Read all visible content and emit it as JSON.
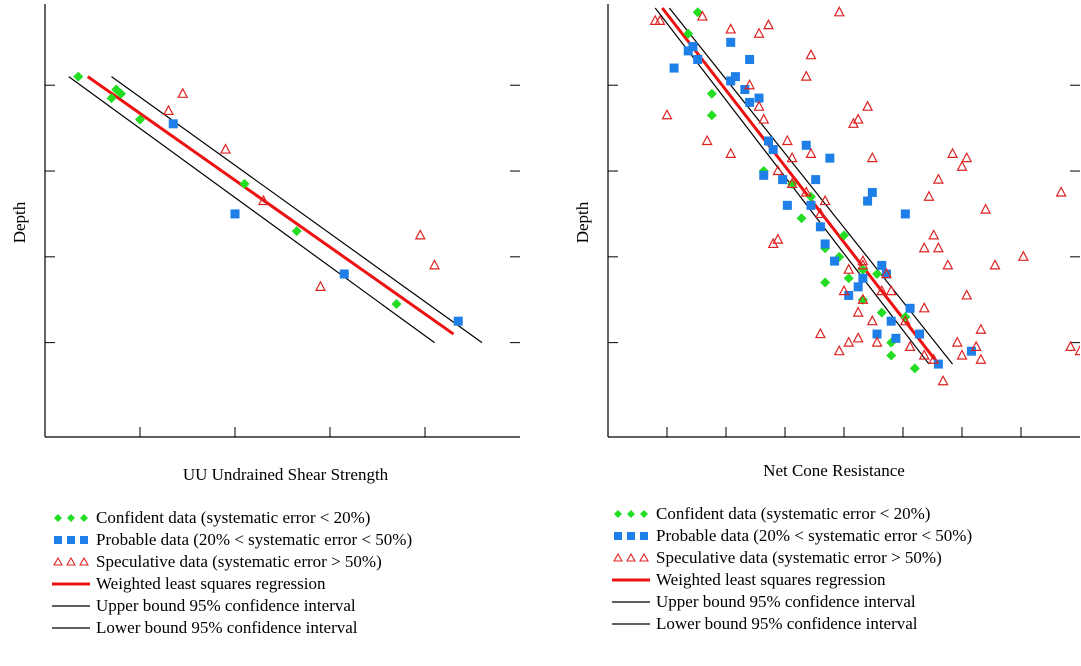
{
  "chart_data": [
    {
      "type": "scatter",
      "xlabel": "UU Undrained Shear Strength",
      "ylabel": "Depth",
      "xlim": [
        0,
        10
      ],
      "ylim": [
        0,
        10
      ],
      "y_inverted": true,
      "x_ticks": [
        2,
        4,
        6,
        8
      ],
      "y_ticks": [
        2,
        4,
        6,
        8
      ],
      "series": [
        {
          "name": "Confident data (systematic error < 20%)",
          "marker": "diamond",
          "color": "#22dd22",
          "points": [
            [
              0.7,
              1.6
            ],
            [
              1.4,
              2.1
            ],
            [
              1.5,
              1.9
            ],
            [
              1.6,
              2.0
            ],
            [
              2.0,
              2.6
            ],
            [
              4.2,
              4.1
            ],
            [
              5.3,
              5.2
            ],
            [
              7.4,
              6.9
            ]
          ]
        },
        {
          "name": "Probable data (20% < systematic error < 50%)",
          "marker": "square",
          "color": "#1e7fe8",
          "points": [
            [
              2.7,
              2.7
            ],
            [
              4.0,
              4.8
            ],
            [
              6.3,
              6.2
            ],
            [
              8.7,
              7.3
            ]
          ]
        },
        {
          "name": "Speculative data (systematic error > 50%)",
          "marker": "triangle-open",
          "color": "#dd2222",
          "points": [
            [
              2.6,
              2.4
            ],
            [
              2.9,
              2.0
            ],
            [
              3.8,
              3.3
            ],
            [
              4.6,
              4.5
            ],
            [
              5.8,
              6.5
            ],
            [
              7.9,
              5.3
            ],
            [
              8.2,
              6.0
            ],
            [
              10.2,
              7.6
            ]
          ]
        },
        {
          "name": "Weighted least squares regression",
          "line": true,
          "color": "#ee1111",
          "points": [
            [
              0.9,
              1.6
            ],
            [
              8.6,
              7.6
            ]
          ]
        },
        {
          "name": "Upper bound 95% confidence interval",
          "line": true,
          "color": "#000000",
          "points": [
            [
              1.4,
              1.6
            ],
            [
              9.2,
              7.8
            ]
          ]
        },
        {
          "name": "Lower bound 95% confidence interval",
          "line": true,
          "color": "#000000",
          "points": [
            [
              0.5,
              1.6
            ],
            [
              8.2,
              7.8
            ]
          ]
        }
      ]
    },
    {
      "type": "scatter",
      "xlabel": "Net Cone Resistance",
      "ylabel": "Depth",
      "xlim": [
        0,
        10
      ],
      "ylim": [
        0,
        10
      ],
      "y_inverted": true,
      "x_ticks": [
        1.25,
        2.5,
        3.75,
        5.0,
        6.25,
        7.5,
        8.75
      ],
      "y_ticks": [
        2,
        4,
        6,
        8
      ],
      "series": [
        {
          "name": "Confident data (systematic error < 20%)",
          "marker": "diamond",
          "color": "#22dd22",
          "points": [
            [
              1.9,
              0.1
            ],
            [
              1.7,
              0.6
            ],
            [
              2.2,
              2.0
            ],
            [
              2.2,
              2.5
            ],
            [
              3.3,
              3.8
            ],
            [
              4.3,
              4.4
            ],
            [
              4.1,
              4.9
            ],
            [
              4.6,
              5.6
            ],
            [
              5.0,
              5.3
            ],
            [
              4.9,
              5.8
            ],
            [
              4.6,
              6.4
            ],
            [
              5.1,
              6.3
            ],
            [
              5.4,
              6.1
            ],
            [
              5.7,
              6.2
            ],
            [
              4.5,
              5.1
            ],
            [
              3.9,
              4.1
            ],
            [
              5.4,
              6.8
            ],
            [
              5.8,
              7.1
            ],
            [
              6.3,
              7.2
            ],
            [
              6.0,
              7.8
            ],
            [
              6.0,
              8.1
            ],
            [
              6.5,
              8.4
            ]
          ]
        },
        {
          "name": "Probable data (20% < systematic error < 50%)",
          "marker": "square",
          "color": "#1e7fe8",
          "points": [
            [
              1.4,
              1.4
            ],
            [
              1.8,
              0.9
            ],
            [
              1.9,
              1.2
            ],
            [
              1.7,
              1.0
            ],
            [
              2.6,
              0.8
            ],
            [
              2.6,
              1.7
            ],
            [
              2.7,
              1.6
            ],
            [
              3.0,
              1.2
            ],
            [
              2.9,
              1.9
            ],
            [
              3.0,
              2.2
            ],
            [
              3.2,
              2.1
            ],
            [
              3.4,
              3.1
            ],
            [
              3.5,
              3.3
            ],
            [
              3.3,
              3.9
            ],
            [
              3.7,
              4.0
            ],
            [
              3.8,
              4.6
            ],
            [
              4.2,
              3.2
            ],
            [
              4.4,
              4.0
            ],
            [
              4.3,
              4.6
            ],
            [
              4.5,
              5.1
            ],
            [
              4.6,
              5.5
            ],
            [
              4.7,
              3.5
            ],
            [
              4.8,
              5.9
            ],
            [
              5.1,
              6.7
            ],
            [
              5.3,
              6.5
            ],
            [
              5.4,
              6.3
            ],
            [
              5.5,
              4.5
            ],
            [
              5.6,
              4.3
            ],
            [
              5.8,
              6.0
            ],
            [
              5.9,
              6.2
            ],
            [
              5.7,
              7.6
            ],
            [
              6.0,
              7.3
            ],
            [
              6.1,
              7.7
            ],
            [
              6.3,
              4.8
            ],
            [
              6.4,
              7.0
            ],
            [
              6.6,
              7.6
            ],
            [
              7.0,
              8.3
            ],
            [
              7.7,
              8.0
            ]
          ]
        },
        {
          "name": "Speculative data (systematic error > 50%)",
          "marker": "triangle-open",
          "color": "#dd2222",
          "points": [
            [
              1.1,
              0.3
            ],
            [
              1.25,
              2.5
            ],
            [
              2.1,
              3.1
            ],
            [
              2.6,
              3.4
            ],
            [
              2.6,
              0.5
            ],
            [
              3.0,
              1.8
            ],
            [
              3.4,
              0.4
            ],
            [
              3.2,
              2.3
            ],
            [
              3.3,
              2.6
            ],
            [
              3.6,
              3.8
            ],
            [
              3.5,
              5.5
            ],
            [
              3.6,
              5.4
            ],
            [
              3.8,
              3.1
            ],
            [
              3.9,
              3.5
            ],
            [
              3.9,
              4.1
            ],
            [
              4.2,
              4.3
            ],
            [
              4.3,
              1.1
            ],
            [
              4.2,
              1.6
            ],
            [
              4.3,
              3.4
            ],
            [
              4.5,
              4.8
            ],
            [
              4.6,
              4.5
            ],
            [
              4.5,
              7.6
            ],
            [
              4.9,
              8.0
            ],
            [
              5.1,
              6.1
            ],
            [
              5.3,
              7.7
            ],
            [
              5.4,
              6.8
            ],
            [
              5.5,
              2.3
            ],
            [
              5.6,
              3.5
            ],
            [
              5.2,
              2.7
            ],
            [
              5.3,
              2.6
            ],
            [
              5.4,
              5.9
            ],
            [
              5.6,
              7.3
            ],
            [
              5.7,
              7.8
            ],
            [
              5.8,
              6.6
            ],
            [
              5.9,
              6.2
            ],
            [
              6.0,
              6.6
            ],
            [
              6.3,
              7.3
            ],
            [
              6.4,
              7.9
            ],
            [
              6.7,
              8.1
            ],
            [
              6.7,
              7.0
            ],
            [
              6.9,
              8.2
            ],
            [
              7.1,
              8.7
            ],
            [
              7.2,
              6.0
            ],
            [
              7.4,
              7.8
            ],
            [
              7.5,
              8.1
            ],
            [
              7.8,
              7.9
            ],
            [
              7.9,
              7.5
            ],
            [
              7.9,
              8.2
            ],
            [
              7.6,
              6.7
            ],
            [
              6.7,
              5.6
            ],
            [
              7.0,
              5.6
            ],
            [
              6.9,
              5.3
            ],
            [
              6.8,
              4.4
            ],
            [
              7.0,
              4.0
            ],
            [
              7.3,
              3.4
            ],
            [
              7.5,
              3.7
            ],
            [
              7.6,
              3.5
            ],
            [
              8.0,
              4.7
            ],
            [
              8.2,
              6.0
            ],
            [
              8.8,
              5.8
            ],
            [
              9.6,
              4.3
            ],
            [
              1.0,
              0.3
            ],
            [
              2.0,
              0.2
            ],
            [
              3.2,
              0.6
            ],
            [
              4.9,
              0.1
            ],
            [
              5.3,
              7.1
            ],
            [
              5.4,
              6.0
            ],
            [
              5.0,
              6.6
            ],
            [
              5.1,
              7.8
            ],
            [
              9.8,
              7.9
            ],
            [
              10.0,
              8.0
            ]
          ]
        },
        {
          "name": "Weighted least squares regression",
          "line": true,
          "color": "#ee1111",
          "points": [
            [
              1.15,
              0.0
            ],
            [
              7.0,
              8.3
            ]
          ]
        },
        {
          "name": "Upper bound 95% confidence interval",
          "line": true,
          "color": "#000000",
          "points": [
            [
              1.3,
              0.0
            ],
            [
              7.3,
              8.3
            ]
          ]
        },
        {
          "name": "Lower bound 95% confidence interval",
          "line": true,
          "color": "#000000",
          "points": [
            [
              1.0,
              0.0
            ],
            [
              6.8,
              8.3
            ]
          ]
        }
      ]
    }
  ],
  "legend": {
    "items": [
      {
        "label": "Confident data (systematic error < 20%)",
        "kind": "diamond",
        "color": "#22dd22"
      },
      {
        "label": "Probable data (20% < systematic error < 50%)",
        "kind": "square",
        "color": "#1e7fe8"
      },
      {
        "label": "Speculative data (systematic error > 50%)",
        "kind": "triangle-open",
        "color": "#dd2222"
      },
      {
        "label": "Weighted least squares regression",
        "kind": "line-thick",
        "color": "#ee1111"
      },
      {
        "label": "Upper bound 95% confidence interval",
        "kind": "line",
        "color": "#000000"
      },
      {
        "label": "Lower bound 95% confidence interval",
        "kind": "line",
        "color": "#000000"
      }
    ]
  }
}
